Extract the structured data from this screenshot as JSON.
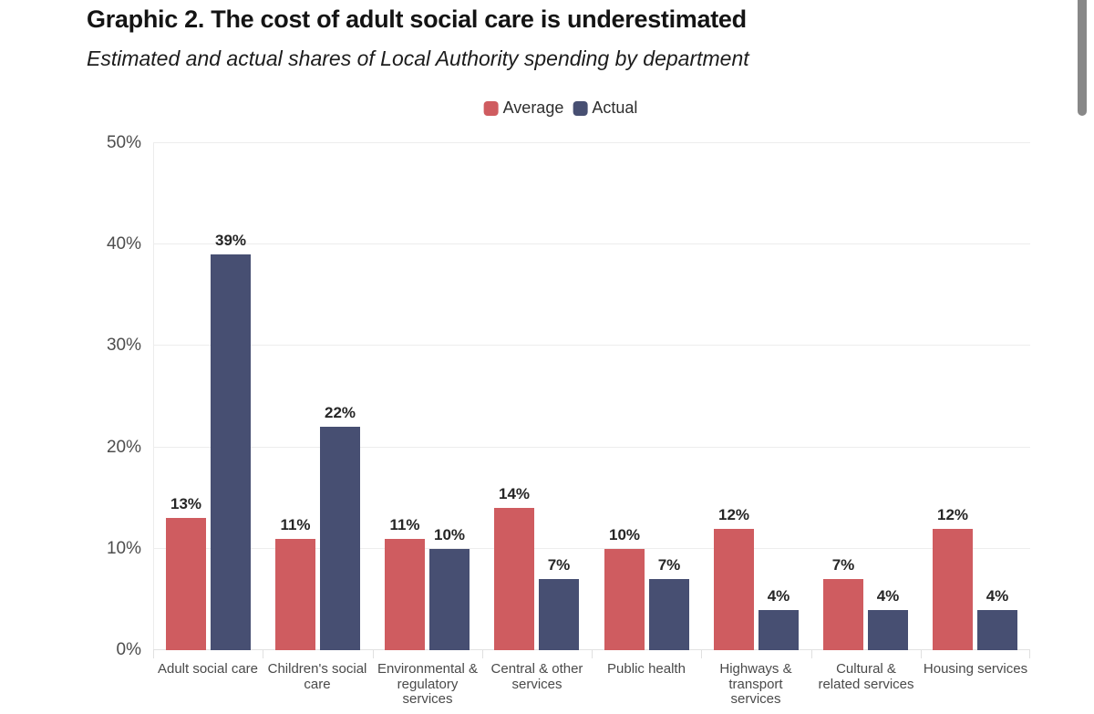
{
  "header": {
    "title": "Graphic 2. The cost of adult social care is underestimated",
    "subtitle": "Estimated and actual shares of Local Authority spending by department"
  },
  "chart_data": {
    "type": "bar",
    "title": "Graphic 2. The cost of adult social care is underestimated",
    "subtitle": "Estimated and actual shares of Local Authority spending by department",
    "categories": [
      "Adult social care",
      "Children's social\ncare",
      "Environmental &\nregulatory\nservices",
      "Central & other\nservices",
      "Public health",
      "Highways &\ntransport\nservices",
      "Cultural &\nrelated services",
      "Housing services"
    ],
    "series": [
      {
        "name": "Average",
        "color": "#cf5c60",
        "values": [
          13,
          11,
          11,
          14,
          10,
          12,
          7,
          12
        ]
      },
      {
        "name": "Actual",
        "color": "#474f72",
        "values": [
          39,
          22,
          10,
          7,
          7,
          4,
          4,
          4
        ]
      }
    ],
    "value_suffix": "%",
    "ylim": [
      0,
      50
    ],
    "yticks": [
      "0%",
      "10%",
      "20%",
      "30%",
      "40%",
      "50%"
    ],
    "grid": "horizontal",
    "legend_position": "top-center",
    "colors": {
      "grid": "#ededed",
      "axis_text": "#4d4d4d",
      "value_text": "#262626",
      "title_text": "#141414"
    }
  }
}
